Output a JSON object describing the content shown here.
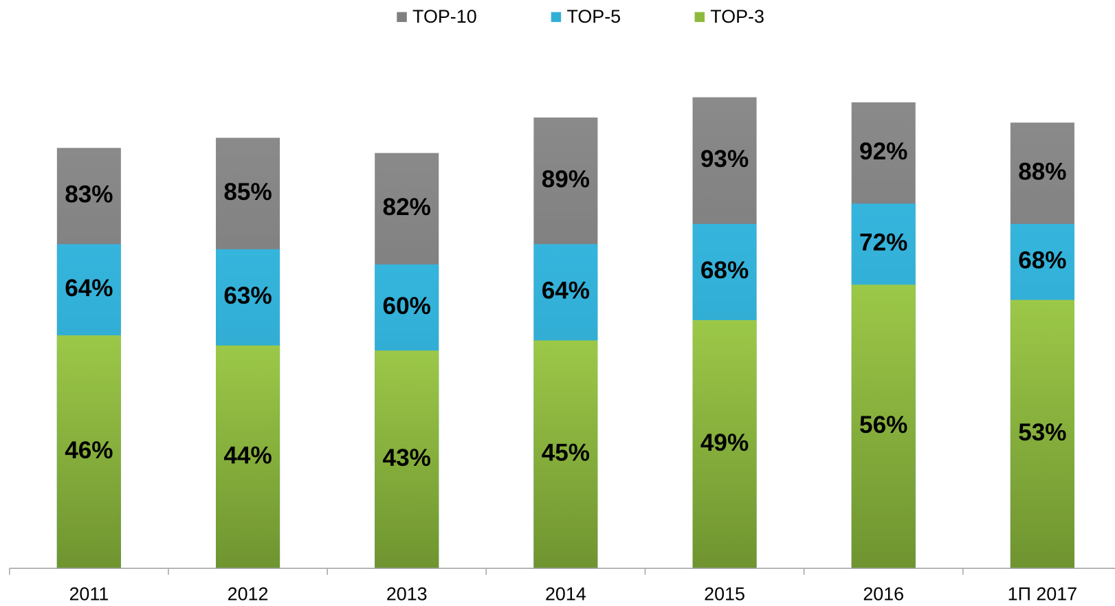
{
  "chart_data": {
    "type": "overlapping_bar",
    "categories": [
      "2011",
      "2012",
      "2013",
      "2014",
      "2015",
      "2016",
      "1П 2017"
    ],
    "series": [
      {
        "name": "TOP-10",
        "color": "#7f7f7f",
        "values": [
          83,
          85,
          82,
          89,
          93,
          92,
          88
        ],
        "value_labels": [
          "83%",
          "85%",
          "82%",
          "89%",
          "93%",
          "92%",
          "88%"
        ]
      },
      {
        "name": "TOP-5",
        "color": "#31b0d5",
        "values": [
          64,
          63,
          60,
          64,
          68,
          72,
          68
        ],
        "value_labels": [
          "64%",
          "63%",
          "60%",
          "64%",
          "68%",
          "72%",
          "68%"
        ]
      },
      {
        "name": "TOP-3",
        "color": "#8dba3e",
        "values": [
          46,
          44,
          43,
          45,
          49,
          56,
          53
        ],
        "value_labels": [
          "46%",
          "44%",
          "43%",
          "45%",
          "49%",
          "56%",
          "53%"
        ]
      }
    ],
    "ylim": [
      0,
      100
    ],
    "legend": "top"
  }
}
